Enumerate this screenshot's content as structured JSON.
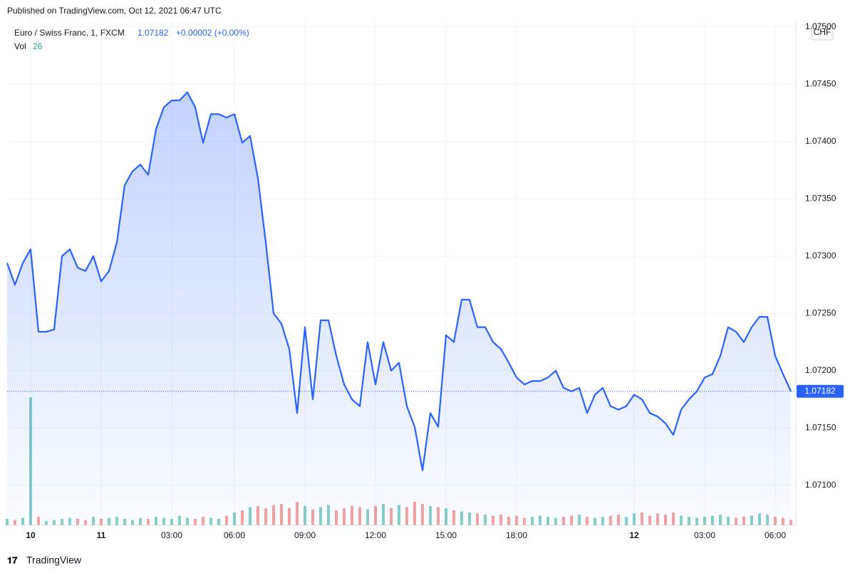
{
  "header": {
    "published": "Published on TradingView.com, Oct 12, 2021 06:47 UTC",
    "symbol": "Euro / Swiss Franc, 1, FXCM",
    "change": "+0.00002 (+0.00%)",
    "volume_label": "Vol",
    "currency": "CHF"
  },
  "footer": {
    "brand": "TradingView"
  },
  "chart_data": {
    "type": "line",
    "categories": [
      null,
      null,
      null,
      "10",
      null,
      null,
      null,
      null,
      null,
      null,
      null,
      null,
      "11",
      null,
      null,
      null,
      null,
      null,
      null,
      null,
      null,
      "03:00",
      null,
      null,
      null,
      null,
      null,
      null,
      null,
      "06:00",
      null,
      null,
      null,
      null,
      null,
      null,
      null,
      null,
      "09:00",
      null,
      null,
      null,
      null,
      null,
      null,
      null,
      null,
      "12:00",
      null,
      null,
      null,
      null,
      null,
      null,
      null,
      null,
      "15:00",
      null,
      null,
      null,
      null,
      null,
      null,
      null,
      null,
      "18:00",
      null,
      null,
      null,
      null,
      null,
      null,
      null,
      null,
      null,
      null,
      null,
      null,
      null,
      null,
      "12",
      null,
      null,
      null,
      null,
      null,
      null,
      null,
      null,
      "03:00",
      null,
      null,
      null,
      null,
      null,
      null,
      null,
      null,
      "06:00",
      null,
      null
    ],
    "series": [
      {
        "color": "#2962ff",
        "values": [
          1.07294,
          1.07275,
          1.07294,
          1.07306,
          1.07234,
          1.07234,
          1.07236,
          1.073,
          1.07306,
          1.0729,
          1.07287,
          1.073,
          1.07278,
          1.07287,
          1.07312,
          1.07362,
          1.07374,
          1.0738,
          1.07371,
          1.07411,
          1.0743,
          1.07436,
          1.07436,
          1.07443,
          1.0743,
          1.07399,
          1.07424,
          1.07424,
          1.07421,
          1.07424,
          1.07399,
          1.07405,
          1.07368,
          1.07312,
          1.0725,
          1.07241,
          1.07219,
          1.07163,
          1.07238,
          1.07175,
          1.07244,
          1.07244,
          1.07213,
          1.07188,
          1.07175,
          1.07169,
          1.07225,
          1.07188,
          1.07225,
          1.072,
          1.07207,
          1.07169,
          1.07151,
          1.07113,
          1.07163,
          1.07151,
          1.07231,
          1.07225,
          1.07262,
          1.07262,
          1.07238,
          1.07238,
          1.07225,
          1.07219,
          1.07207,
          1.07194,
          1.07188,
          1.07191,
          1.07191,
          1.07194,
          1.072,
          1.07185,
          1.07182,
          1.07185,
          1.07163,
          1.07179,
          1.07185,
          1.07169,
          1.07166,
          1.07169,
          1.07179,
          1.07175,
          1.07163,
          1.0716,
          1.07154,
          1.07144,
          1.07166,
          1.07175,
          1.07182,
          1.07194,
          1.07197,
          1.07213,
          1.07238,
          1.07234,
          1.07225,
          1.07238,
          1.07247,
          1.07247,
          1.07213,
          1.07197,
          1.07182
        ]
      }
    ],
    "volume": {
      "up_color": "#26a69a",
      "down_color": "#ef5350",
      "values": [
        30,
        25,
        35,
        600,
        40,
        20,
        25,
        30,
        35,
        30,
        25,
        40,
        30,
        35,
        40,
        30,
        25,
        35,
        30,
        40,
        35,
        30,
        45,
        35,
        30,
        40,
        35,
        30,
        45,
        60,
        70,
        85,
        90,
        80,
        95,
        100,
        80,
        110,
        90,
        75,
        85,
        95,
        70,
        80,
        90,
        85,
        75,
        90,
        100,
        80,
        95,
        85,
        110,
        100,
        90,
        85,
        80,
        70,
        65,
        60,
        55,
        50,
        45,
        50,
        40,
        45,
        35,
        40,
        45,
        40,
        35,
        40,
        45,
        50,
        40,
        35,
        40,
        45,
        50,
        40,
        55,
        60,
        45,
        55,
        50,
        60,
        45,
        40,
        35,
        40,
        45,
        50,
        40,
        35,
        40,
        45,
        55,
        50,
        40,
        35,
        26
      ]
    },
    "ylim": [
      1.07065,
      1.07505
    ],
    "yticks": [
      {
        "value": 1.071,
        "label": "1.07100"
      },
      {
        "value": 1.0715,
        "label": "1.07150"
      },
      {
        "value": 1.072,
        "label": "1.07200"
      },
      {
        "value": 1.0725,
        "label": "1.07250"
      },
      {
        "value": 1.073,
        "label": "1.07300"
      },
      {
        "value": 1.0735,
        "label": "1.07350"
      },
      {
        "value": 1.074,
        "label": "1.07400"
      },
      {
        "value": 1.0745,
        "label": "1.07450"
      },
      {
        "value": 1.075,
        "label": "1.07500"
      }
    ],
    "grid": true
  }
}
